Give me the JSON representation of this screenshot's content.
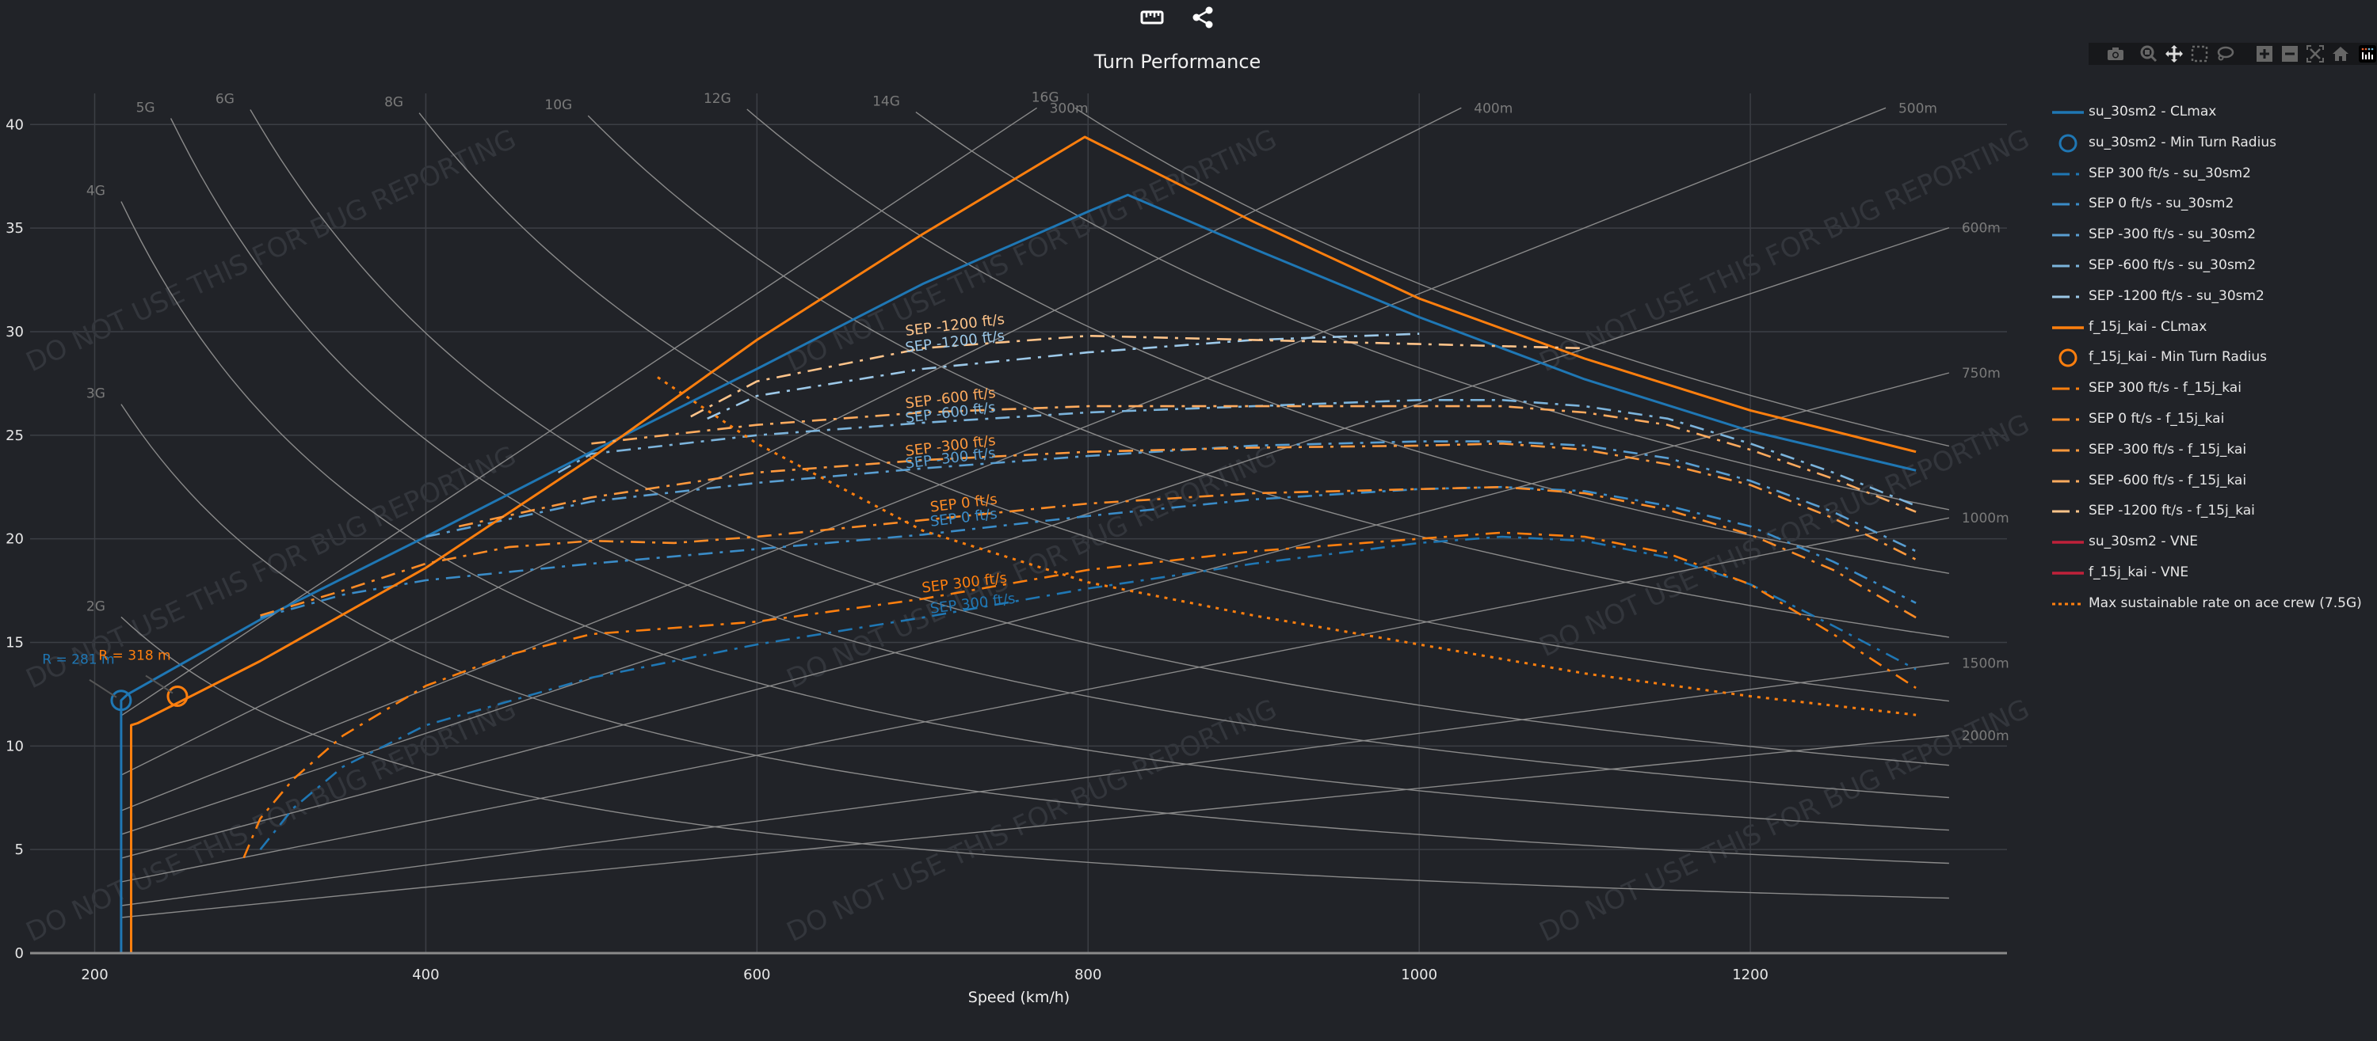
{
  "toolbar": {
    "icons": [
      "ruler-icon",
      "share-icon"
    ],
    "modebar": [
      "camera-icon",
      "zoom-icon",
      "pan-icon",
      "box-select-icon",
      "lasso-icon",
      "zoom-in-icon",
      "zoom-out-icon",
      "autoscale-icon",
      "home-icon",
      "plotly-logo-icon"
    ]
  },
  "colors": {
    "background": "#212328",
    "grid": "#3c3f45",
    "su30": "#1f77b4",
    "f15": "#ff7f0e",
    "vne": "#c0213a",
    "g_line": "#8a8a8a",
    "watermark": "#33363c"
  },
  "watermark": "DO NOT USE THIS FOR BUG REPORTING",
  "chart_data": {
    "type": "line",
    "title": "Turn Performance",
    "xlabel": "Speed (km/h)",
    "ylabel": "",
    "xlim": [
      161,
      1355
    ],
    "ylim": [
      0,
      41.5
    ],
    "x_ticks": [
      200,
      400,
      600,
      800,
      1000,
      1200
    ],
    "y_ticks": [
      0,
      5,
      10,
      15,
      20,
      25,
      30,
      35,
      40
    ],
    "grid": true,
    "legend_position": "right",
    "g_lines": {
      "values": [
        2,
        3,
        4,
        5,
        6,
        8,
        10,
        12,
        14,
        16
      ],
      "labels": [
        "2G",
        "3G",
        "4G",
        "5G",
        "6G",
        "8G",
        "10G",
        "12G",
        "14G",
        "16G"
      ]
    },
    "radius_lines": {
      "values": [
        300,
        400,
        500,
        600,
        750,
        1000,
        1500,
        2000
      ],
      "labels": [
        "300m",
        "400m",
        "500m",
        "600m",
        "750m",
        "1000m",
        "1500m",
        "2000m"
      ]
    },
    "annotations": [
      {
        "text": "R = 281 m",
        "series": "su_30sm2",
        "x": 216,
        "y": 12.2
      },
      {
        "text": "R = 318 m",
        "series": "f_15j_kai",
        "x": 250,
        "y": 12.4
      }
    ],
    "series": [
      {
        "name": "su_30sm2 - CLmax",
        "aircraft": "su_30sm2",
        "style": "solid",
        "color": "#1f77b4",
        "x": [
          216,
          216,
          220,
          300,
          400,
          500,
          600,
          700,
          800,
          824,
          900,
          1000,
          1100,
          1200,
          1300
        ],
        "y": [
          0,
          12.2,
          12.5,
          16.1,
          20.1,
          24.2,
          28.2,
          32.3,
          35.8,
          36.6,
          34.0,
          30.7,
          27.7,
          25.2,
          23.3
        ]
      },
      {
        "name": "su_30sm2 - Min Turn Radius",
        "aircraft": "su_30sm2",
        "style": "marker",
        "color": "#1f77b4",
        "x": [
          216
        ],
        "y": [
          12.2
        ]
      },
      {
        "name": "SEP 300 ft/s - su_30sm2",
        "aircraft": "su_30sm2",
        "style": "dashdot",
        "color": "#1f77b4",
        "x": [
          300,
          320,
          350,
          400,
          500,
          600,
          700,
          800,
          900,
          1000,
          1050,
          1100,
          1150,
          1200,
          1250,
          1300
        ],
        "y": [
          5.0,
          7.0,
          9.0,
          11.0,
          13.3,
          14.9,
          16.2,
          17.6,
          18.8,
          19.8,
          20.1,
          19.9,
          19.1,
          17.8,
          15.8,
          13.7
        ]
      },
      {
        "name": "SEP 0 ft/s - su_30sm2",
        "aircraft": "su_30sm2",
        "style": "dashdot",
        "color": "#3a8cc8",
        "x": [
          300,
          350,
          400,
          500,
          600,
          700,
          800,
          900,
          1000,
          1050,
          1100,
          1150,
          1200,
          1250,
          1300
        ],
        "y": [
          16.2,
          17.3,
          18.0,
          18.8,
          19.5,
          20.2,
          21.1,
          21.9,
          22.4,
          22.5,
          22.3,
          21.6,
          20.6,
          18.9,
          16.9
        ]
      },
      {
        "name": "SEP -300 ft/s - su_30sm2",
        "aircraft": "su_30sm2",
        "style": "dashdot",
        "color": "#5a9fd2",
        "x": [
          400,
          500,
          600,
          700,
          800,
          900,
          1000,
          1050,
          1100,
          1150,
          1200,
          1250,
          1300
        ],
        "y": [
          20.1,
          21.8,
          22.7,
          23.4,
          24.0,
          24.5,
          24.7,
          24.7,
          24.5,
          23.9,
          22.8,
          21.3,
          19.4
        ]
      },
      {
        "name": "SEP -600 ft/s - su_30sm2",
        "aircraft": "su_30sm2",
        "style": "dashdot",
        "color": "#7cb4dc",
        "x": [
          480,
          500,
          600,
          700,
          800,
          900,
          1000,
          1050,
          1100,
          1150,
          1200,
          1250,
          1300
        ],
        "y": [
          23.2,
          24.1,
          25.0,
          25.6,
          26.1,
          26.4,
          26.7,
          26.7,
          26.4,
          25.8,
          24.6,
          23.2,
          21.6
        ]
      },
      {
        "name": "SEP -1200 ft/s - su_30sm2",
        "aircraft": "su_30sm2",
        "style": "dashdot",
        "color": "#9cc8e8",
        "x": [
          570,
          600,
          700,
          800,
          900,
          1000
        ],
        "y": [
          25.8,
          26.9,
          28.2,
          29.0,
          29.6,
          29.9
        ]
      },
      {
        "name": "f_15j_kai - CLmax",
        "aircraft": "f_15j_kai",
        "style": "solid",
        "color": "#ff7f0e",
        "x": [
          222,
          222,
          226,
          300,
          400,
          500,
          600,
          700,
          798,
          900,
          1000,
          1100,
          1200,
          1300
        ],
        "y": [
          0,
          11.0,
          11.1,
          14.1,
          18.6,
          23.9,
          29.6,
          34.7,
          39.4,
          35.3,
          31.6,
          28.7,
          26.2,
          24.2
        ]
      },
      {
        "name": "f_15j_kai - Min Turn Radius",
        "aircraft": "f_15j_kai",
        "style": "marker",
        "color": "#ff7f0e",
        "x": [
          250
        ],
        "y": [
          12.4
        ]
      },
      {
        "name": "SEP 300 ft/s - f_15j_kai",
        "aircraft": "f_15j_kai",
        "style": "dashdot",
        "color": "#ff7f0e",
        "x": [
          290,
          300,
          320,
          350,
          400,
          450,
          500,
          600,
          700,
          800,
          900,
          1000,
          1050,
          1100,
          1150,
          1200,
          1250,
          1300
        ],
        "y": [
          4.6,
          6.5,
          8.4,
          10.5,
          12.9,
          14.4,
          15.4,
          16.0,
          17.1,
          18.5,
          19.4,
          20.0,
          20.3,
          20.1,
          19.3,
          17.8,
          15.4,
          12.8
        ]
      },
      {
        "name": "SEP 0 ft/s - f_15j_kai",
        "aircraft": "f_15j_kai",
        "style": "dashdot",
        "color": "#ff8c26",
        "x": [
          300,
          350,
          400,
          450,
          500,
          550,
          600,
          700,
          800,
          900,
          1000,
          1050,
          1100,
          1150,
          1200,
          1250,
          1300
        ],
        "y": [
          16.3,
          17.5,
          18.8,
          19.6,
          19.9,
          19.8,
          20.1,
          20.9,
          21.7,
          22.2,
          22.4,
          22.5,
          22.2,
          21.4,
          20.2,
          18.5,
          16.2
        ]
      },
      {
        "name": "SEP -300 ft/s - f_15j_kai",
        "aircraft": "f_15j_kai",
        "style": "dashdot",
        "color": "#ff993d",
        "x": [
          420,
          500,
          600,
          700,
          800,
          900,
          1000,
          1050,
          1100,
          1150,
          1200,
          1250,
          1300
        ],
        "y": [
          20.6,
          22.0,
          23.2,
          23.8,
          24.2,
          24.4,
          24.5,
          24.6,
          24.3,
          23.6,
          22.6,
          21.0,
          19.0
        ]
      },
      {
        "name": "SEP -600 ft/s - f_15j_kai",
        "aircraft": "f_15j_kai",
        "style": "dashdot",
        "color": "#ffab5e",
        "x": [
          500,
          600,
          700,
          800,
          900,
          1000,
          1050,
          1100,
          1150,
          1200,
          1250,
          1300
        ],
        "y": [
          24.6,
          25.5,
          26.1,
          26.4,
          26.4,
          26.4,
          26.4,
          26.1,
          25.5,
          24.3,
          22.9,
          21.3
        ]
      },
      {
        "name": "SEP -1200 ft/s - f_15j_kai",
        "aircraft": "f_15j_kai",
        "style": "dashdot",
        "color": "#ffc48a",
        "x": [
          560,
          600,
          700,
          800,
          900,
          1000,
          1100
        ],
        "y": [
          25.9,
          27.6,
          29.2,
          29.8,
          29.6,
          29.4,
          29.2
        ]
      },
      {
        "name": "su_30sm2 - VNE",
        "aircraft": "su_30sm2",
        "style": "solid",
        "color": "#c0213a",
        "x": [],
        "y": []
      },
      {
        "name": "f_15j_kai - VNE",
        "aircraft": "f_15j_kai",
        "style": "solid",
        "color": "#c0213a",
        "x": [],
        "y": []
      },
      {
        "name": "Max sustainable rate on ace crew (7.5G)",
        "aircraft": "f_15j_kai",
        "style": "dotted",
        "color": "#ff7f0e",
        "x": [
          540,
          600,
          700,
          800,
          900,
          1000,
          1100,
          1200,
          1300
        ],
        "y": [
          27.8,
          24.6,
          20.4,
          17.9,
          16.3,
          14.9,
          13.5,
          12.4,
          11.5
        ]
      }
    ],
    "sep_labels": [
      {
        "text": "SEP -1200 ft/s",
        "color": "#ffc48a",
        "x": 690,
        "y": 29.8
      },
      {
        "text": "SEP -1200 ft/s",
        "color": "#9cc8e8",
        "x": 690,
        "y": 29.0
      },
      {
        "text": "SEP -600 ft/s",
        "color": "#ffab5e",
        "x": 690,
        "y": 26.3
      },
      {
        "text": "SEP -600 ft/s",
        "color": "#7cb4dc",
        "x": 690,
        "y": 25.6
      },
      {
        "text": "SEP -300 ft/s",
        "color": "#ff993d",
        "x": 690,
        "y": 24.0
      },
      {
        "text": "SEP -300 ft/s",
        "color": "#5a9fd2",
        "x": 690,
        "y": 23.4
      },
      {
        "text": "SEP 0 ft/s",
        "color": "#ff8c26",
        "x": 705,
        "y": 21.3
      },
      {
        "text": "SEP 0 ft/s",
        "color": "#3a8cc8",
        "x": 705,
        "y": 20.6
      },
      {
        "text": "SEP 300 ft/s",
        "color": "#ff7f0e",
        "x": 700,
        "y": 17.4
      },
      {
        "text": "SEP 300 ft/s",
        "color": "#1f77b4",
        "x": 705,
        "y": 16.4
      }
    ]
  }
}
